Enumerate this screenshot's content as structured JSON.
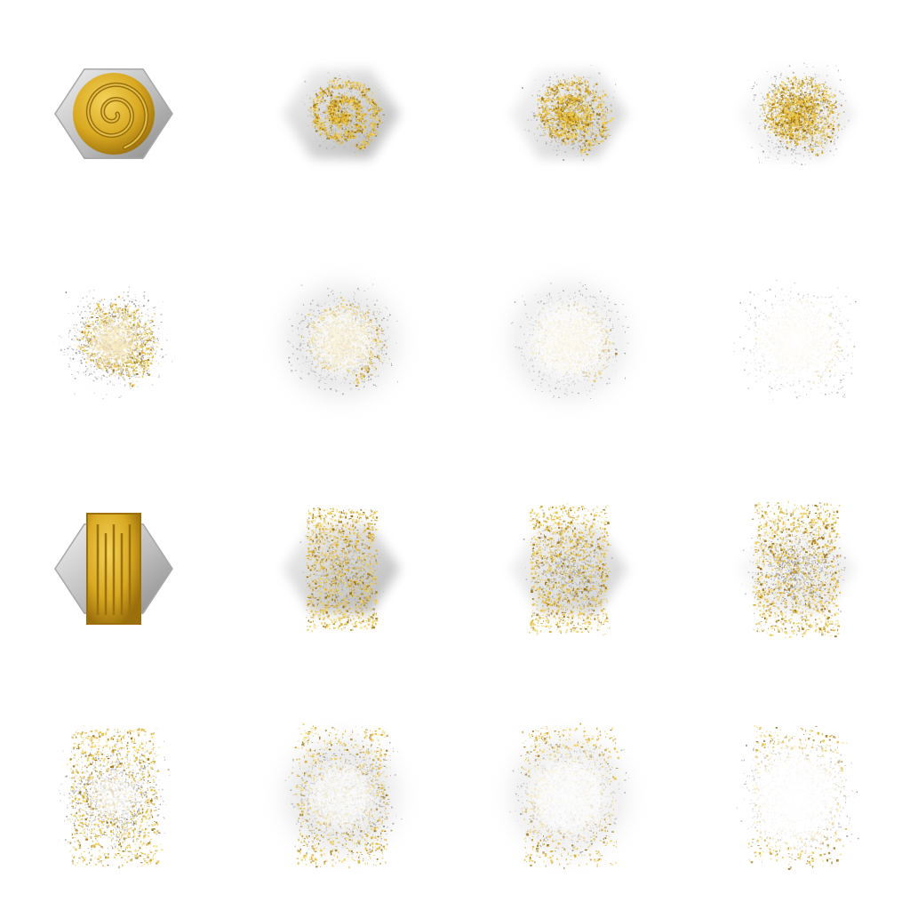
{
  "sprite_sheet": {
    "colors": {
      "background": "#ffffff",
      "gold_light": "#f3d35a",
      "gold": "#d9a922",
      "gold_dark": "#9a6f0c",
      "metal_light": "#f0f0f0",
      "metal": "#bdbdbd",
      "metal_dark": "#8a8a8a",
      "glow": "#ffffff"
    },
    "sequences": [
      {
        "name": "swirl-coin-dissolve",
        "icon": "swirl-icon",
        "frames": [
          {
            "dissolve": 0.0,
            "glow": 0.0
          },
          {
            "dissolve": 0.3,
            "glow": 0.0
          },
          {
            "dissolve": 0.5,
            "glow": 0.0
          },
          {
            "dissolve": 0.7,
            "glow": 0.0
          },
          {
            "dissolve": 0.85,
            "glow": 0.25
          },
          {
            "dissolve": 0.9,
            "glow": 0.55
          },
          {
            "dissolve": 0.95,
            "glow": 0.8
          },
          {
            "dissolve": 1.0,
            "glow": 1.0
          }
        ]
      },
      {
        "name": "bar-coin-dissolve",
        "icon": "bars-icon",
        "frames": [
          {
            "dissolve": 0.0,
            "glow": 0.0
          },
          {
            "dissolve": 0.3,
            "glow": 0.0
          },
          {
            "dissolve": 0.5,
            "glow": 0.0
          },
          {
            "dissolve": 0.7,
            "glow": 0.0
          },
          {
            "dissolve": 0.85,
            "glow": 0.25
          },
          {
            "dissolve": 0.9,
            "glow": 0.55
          },
          {
            "dissolve": 0.95,
            "glow": 0.8
          },
          {
            "dissolve": 1.0,
            "glow": 1.0
          }
        ]
      }
    ]
  }
}
